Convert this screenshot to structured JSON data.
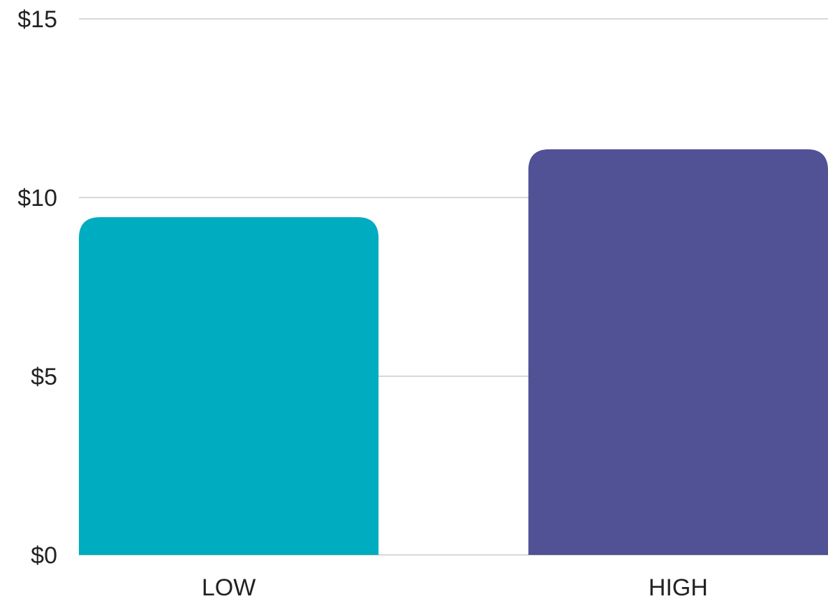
{
  "chart_data": {
    "type": "bar",
    "categories": [
      "LOW",
      "HIGH"
    ],
    "values": [
      9.45,
      11.35
    ],
    "colors": [
      "#00acbf",
      "#515196"
    ],
    "ylim": [
      0,
      15
    ],
    "yticks": [
      0,
      5,
      10,
      15
    ],
    "ytick_labels": [
      "$0",
      "$5",
      "$10",
      "$15"
    ],
    "grid": true,
    "title": "",
    "xlabel": "",
    "ylabel": ""
  }
}
